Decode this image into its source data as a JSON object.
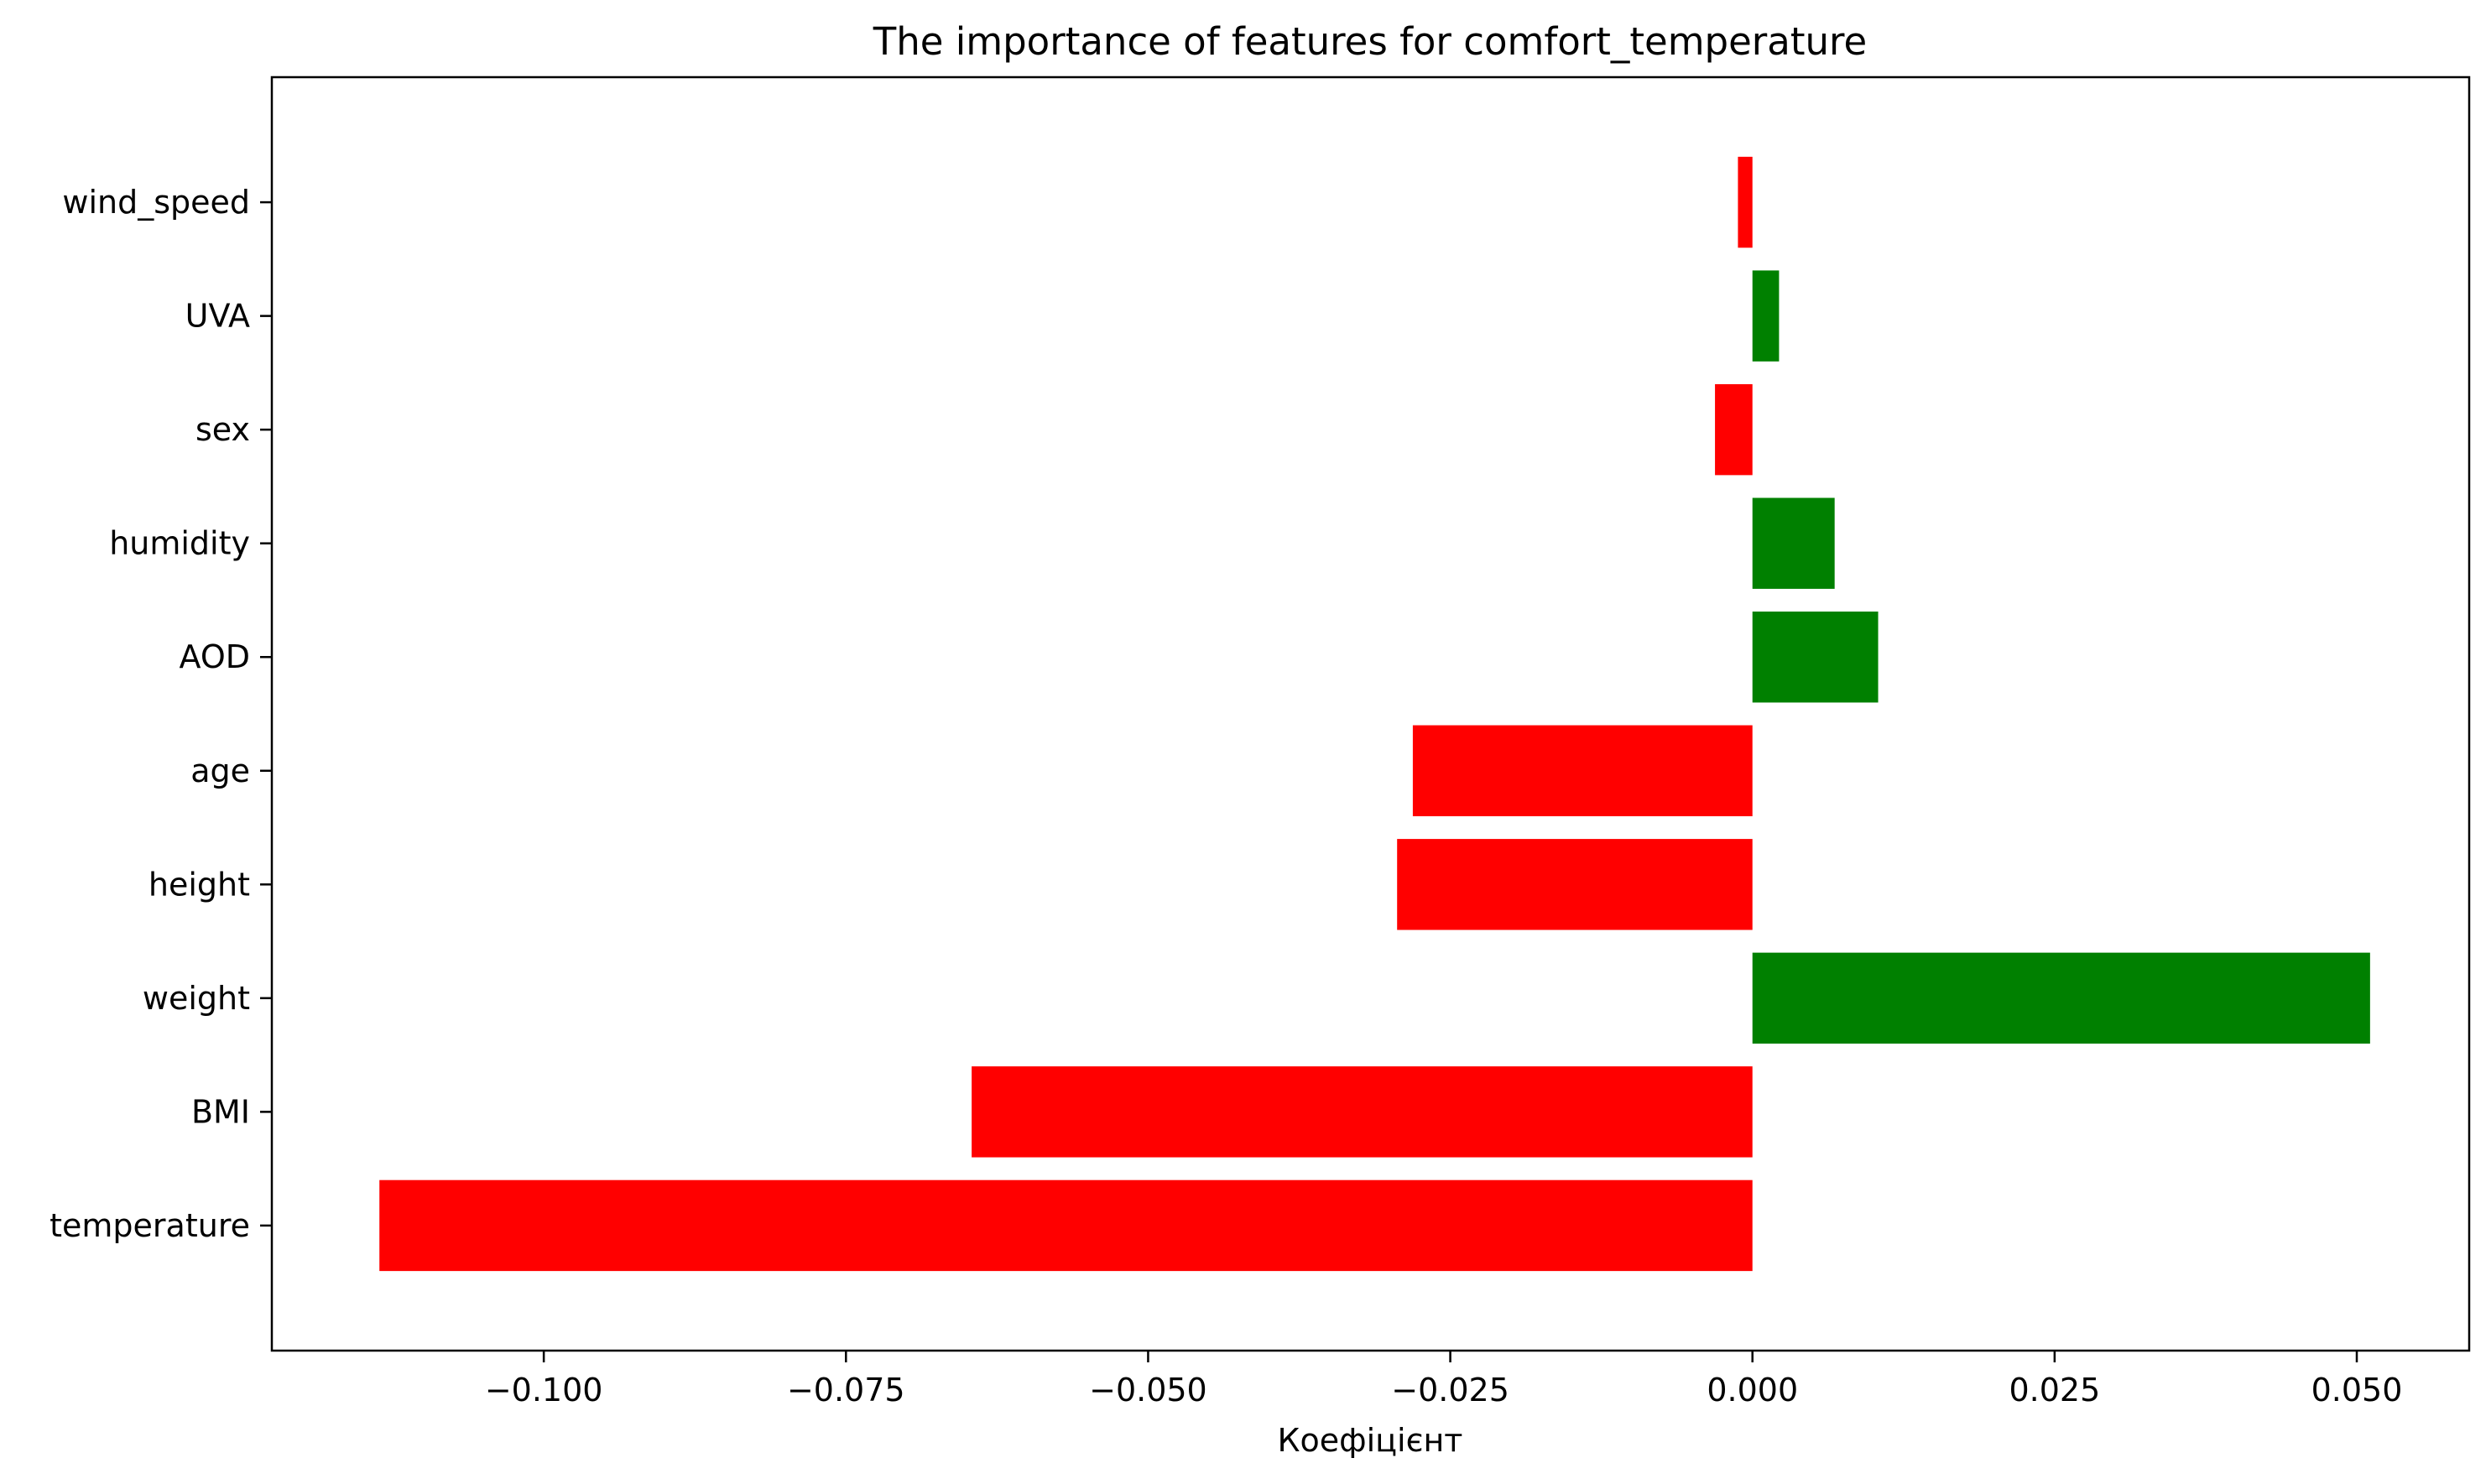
{
  "chart_data": {
    "type": "bar",
    "orientation": "horizontal",
    "title": "The importance of features for comfort_temperature",
    "xlabel": "Коефіцієнт",
    "ylabel": "",
    "categories": [
      "temperature",
      "BMI",
      "weight",
      "height",
      "age",
      "AOD",
      "humidity",
      "sex",
      "UVA",
      "wind_speed"
    ],
    "values": [
      -0.1136,
      -0.0646,
      0.0511,
      -0.0294,
      -0.0281,
      0.0104,
      0.0068,
      -0.0031,
      0.0022,
      -0.0012
    ],
    "xlim": [
      -0.1225,
      0.0593
    ],
    "xticks": [
      -0.1,
      -0.075,
      -0.05,
      -0.025,
      0.0,
      0.025,
      0.05
    ],
    "xtick_labels": [
      "−0.100",
      "−0.075",
      "−0.050",
      "−0.025",
      "0.000",
      "0.025",
      "0.050"
    ],
    "grid": false,
    "colors": {
      "positive": "#008000",
      "negative": "#ff0000",
      "axis": "#000000",
      "background": "#ffffff"
    }
  }
}
